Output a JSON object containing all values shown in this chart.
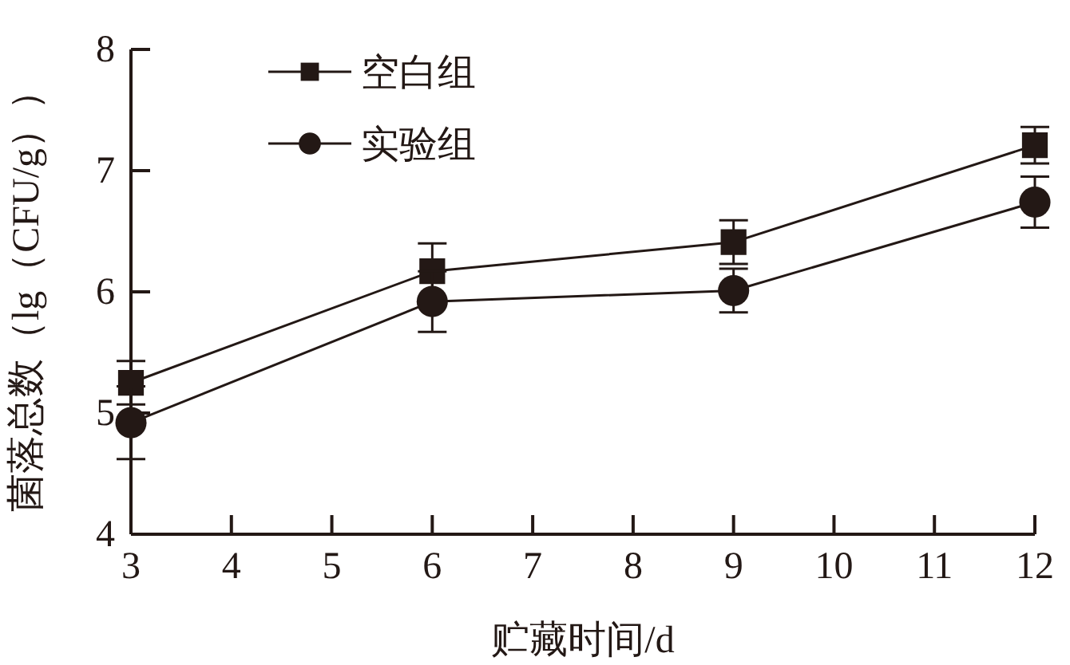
{
  "chart_data": {
    "type": "line",
    "xlabel": "贮藏时间/d",
    "ylabel": "菌落总数（lg（CFU/g））",
    "x": [
      3,
      6,
      9,
      12
    ],
    "series": [
      {
        "name": "空白组",
        "color": "#231815",
        "values": [
          5.25,
          6.17,
          6.41,
          7.21
        ],
        "errors": [
          0.18,
          0.23,
          0.18,
          0.15
        ],
        "marker": "square"
      },
      {
        "name": "实验组",
        "color": "#231815",
        "values": [
          4.92,
          5.92,
          6.01,
          6.74
        ],
        "errors": [
          0.3,
          0.25,
          0.18,
          0.21
        ],
        "marker": "circle"
      }
    ],
    "xlim": [
      3,
      12
    ],
    "ylim": [
      4,
      8
    ],
    "xticks": [
      3,
      4,
      5,
      6,
      7,
      8,
      9,
      10,
      11,
      12
    ],
    "yticks": [
      4,
      5,
      6,
      7,
      8
    ],
    "legend": "top left",
    "grid": false
  }
}
